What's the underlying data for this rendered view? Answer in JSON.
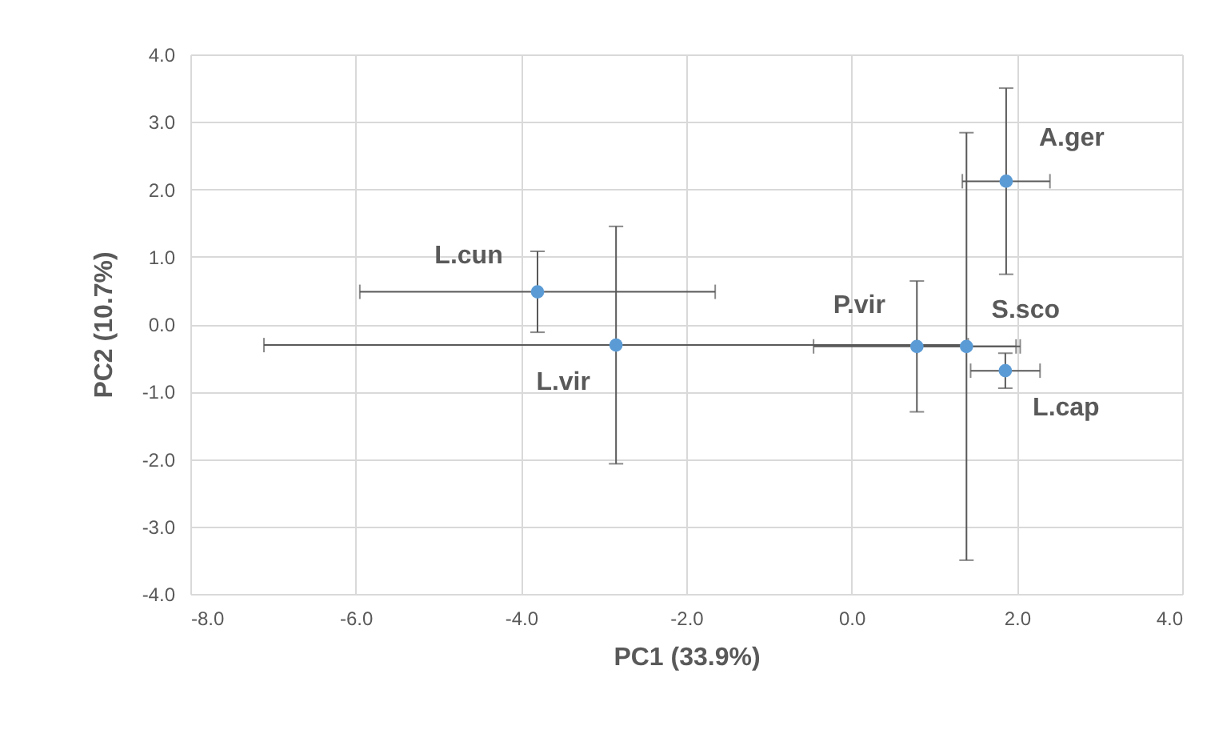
{
  "chart_data": {
    "type": "scatter",
    "xlabel": "PC1 (33.9%)",
    "ylabel": "PC2 (10.7%)",
    "x": [
      -3.8,
      -2.85,
      0.79,
      1.39,
      1.87,
      1.86
    ],
    "values": [
      0.48,
      -0.31,
      -0.33,
      -0.33,
      2.12,
      -0.69
    ],
    "xerrors": [
      2.15,
      4.26,
      1.25,
      0.6,
      0.53,
      0.42
    ],
    "errors": [
      0.6,
      1.76,
      0.97,
      3.17,
      1.38,
      0.26
    ],
    "color": "#5b9bd5",
    "marker": "circle",
    "grid": true,
    "xlim": [
      -8,
      4
    ],
    "ylim": [
      -4,
      4
    ],
    "xticks": [
      {
        "value": -8,
        "label": "-8.0"
      },
      {
        "value": -6,
        "label": "-6.0"
      },
      {
        "value": -4,
        "label": "-4.0"
      },
      {
        "value": -2,
        "label": "-2.0"
      },
      {
        "value": 0,
        "label": "0.0"
      },
      {
        "value": 2,
        "label": "2.0"
      },
      {
        "value": 4,
        "label": "4.0"
      }
    ],
    "yticks": [
      {
        "value": -4,
        "label": "-4.0"
      },
      {
        "value": -3,
        "label": "-3.0"
      },
      {
        "value": -2,
        "label": "-2.0"
      },
      {
        "value": -1,
        "label": "-1.0"
      },
      {
        "value": 0,
        "label": "0.0"
      },
      {
        "value": 1,
        "label": "1.0"
      },
      {
        "value": 2,
        "label": "2.0"
      },
      {
        "value": 3,
        "label": "3.0"
      },
      {
        "value": 4,
        "label": "4.0"
      }
    ],
    "annotations": [
      {
        "text": "L.cun",
        "x": -3.8,
        "y": 0.48
      },
      {
        "text": "L.vir",
        "x": -2.85,
        "y": -0.31
      },
      {
        "text": "P.vir",
        "x": 0.79,
        "y": -0.33
      },
      {
        "text": "S.sco",
        "x": 1.39,
        "y": -0.33
      },
      {
        "text": "A.ger",
        "x": 1.87,
        "y": 2.12
      },
      {
        "text": "L.cap",
        "x": 1.86,
        "y": -0.69
      }
    ]
  }
}
